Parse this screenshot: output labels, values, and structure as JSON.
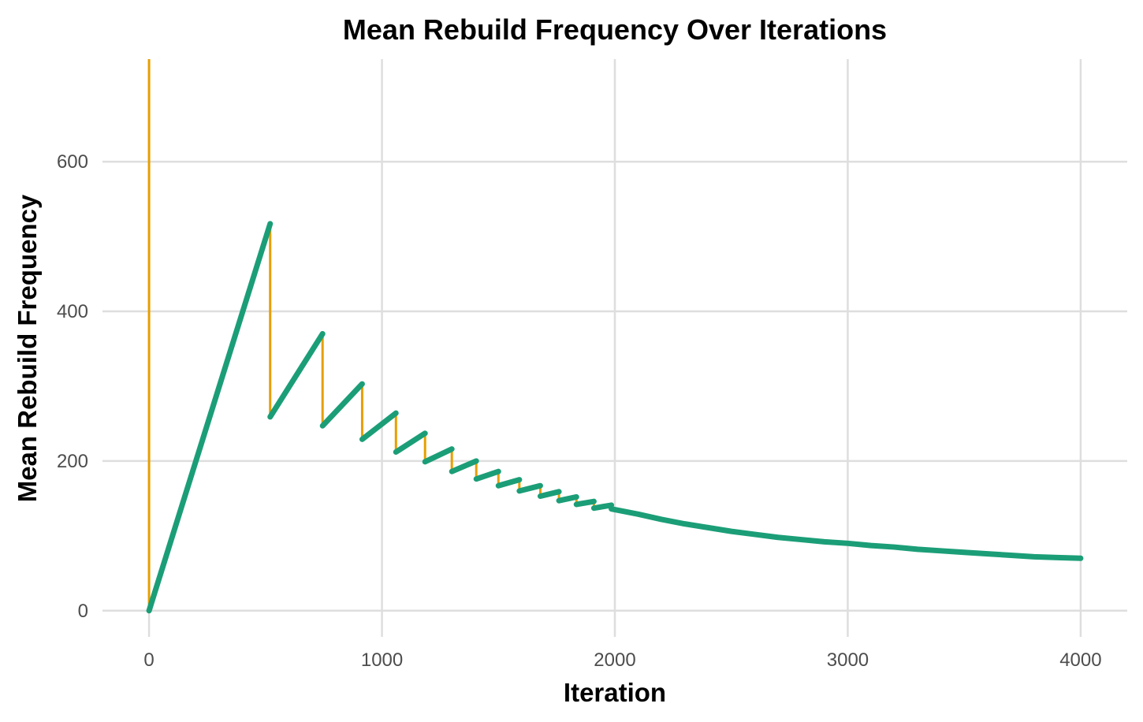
{
  "chart_data": {
    "type": "line",
    "title": "Mean Rebuild Frequency Over Iterations",
    "xlabel": "Iteration",
    "ylabel": "Mean Rebuild Frequency",
    "xlim": [
      -200,
      4200
    ],
    "ylim": [
      -35,
      737
    ],
    "x_ticks": [
      0,
      1000,
      2000,
      3000,
      4000
    ],
    "x_tick_labels": [
      "0",
      "1000",
      "2000",
      "3000",
      "4000"
    ],
    "y_ticks": [
      0,
      200,
      400,
      600
    ],
    "y_tick_labels": [
      "0",
      "200",
      "400",
      "600"
    ],
    "grid": true,
    "legend": "none",
    "colors": {
      "drop": "#E69F00",
      "rise": "#1B9E77"
    },
    "series": [
      {
        "color": "#E69F00",
        "style": "vertical-drops",
        "segments": [
          [
            0,
            737,
            0
          ],
          [
            520,
            517,
            259
          ],
          [
            745,
            370,
            247
          ],
          [
            915,
            303,
            229
          ],
          [
            1060,
            264,
            212
          ],
          [
            1185,
            237,
            199
          ],
          [
            1300,
            216,
            186
          ],
          [
            1405,
            200,
            176
          ],
          [
            1500,
            186,
            167
          ],
          [
            1590,
            175,
            160
          ],
          [
            1680,
            167,
            153
          ],
          [
            1760,
            159,
            147
          ],
          [
            1835,
            152,
            142
          ],
          [
            1910,
            146,
            137
          ]
        ]
      },
      {
        "color": "#1B9E77",
        "style": "rising-segments",
        "segments": [
          [
            [
              0,
              0
            ],
            [
              520,
              517
            ]
          ],
          [
            [
              520,
              259
            ],
            [
              745,
              370
            ]
          ],
          [
            [
              745,
              247
            ],
            [
              915,
              303
            ]
          ],
          [
            [
              915,
              229
            ],
            [
              1060,
              264
            ]
          ],
          [
            [
              1060,
              212
            ],
            [
              1185,
              237
            ]
          ],
          [
            [
              1185,
              199
            ],
            [
              1300,
              216
            ]
          ],
          [
            [
              1300,
              186
            ],
            [
              1405,
              200
            ]
          ],
          [
            [
              1405,
              176
            ],
            [
              1500,
              186
            ]
          ],
          [
            [
              1500,
              167
            ],
            [
              1590,
              175
            ]
          ],
          [
            [
              1590,
              160
            ],
            [
              1680,
              167
            ]
          ],
          [
            [
              1680,
              153
            ],
            [
              1760,
              159
            ]
          ],
          [
            [
              1760,
              147
            ],
            [
              1835,
              152
            ]
          ],
          [
            [
              1835,
              142
            ],
            [
              1910,
              146
            ]
          ],
          [
            [
              1910,
              137
            ],
            [
              1985,
              141
            ]
          ]
        ],
        "tail": [
          [
            1985,
            136
          ],
          [
            2100,
            129
          ],
          [
            2200,
            122
          ],
          [
            2300,
            116
          ],
          [
            2400,
            111
          ],
          [
            2500,
            106
          ],
          [
            2600,
            102
          ],
          [
            2700,
            98
          ],
          [
            2800,
            95
          ],
          [
            2900,
            92
          ],
          [
            3000,
            90
          ],
          [
            3100,
            87
          ],
          [
            3200,
            85
          ],
          [
            3300,
            82
          ],
          [
            3400,
            80
          ],
          [
            3500,
            78
          ],
          [
            3600,
            76
          ],
          [
            3700,
            74
          ],
          [
            3800,
            72
          ],
          [
            3900,
            71
          ],
          [
            4000,
            70
          ]
        ]
      }
    ]
  }
}
